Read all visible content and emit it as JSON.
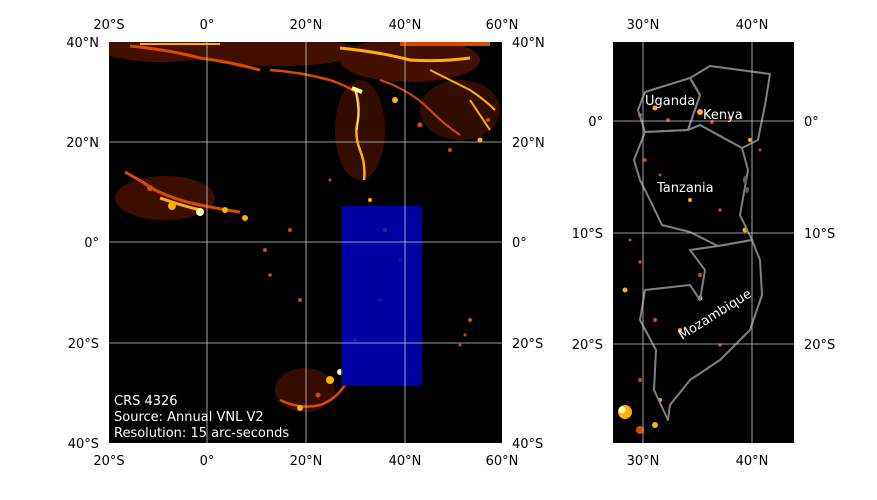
{
  "main_map": {
    "lon_ticks": [
      "20°S",
      "0°",
      "20°N",
      "40°N",
      "60°N"
    ],
    "lat_ticks": [
      "40°N",
      "20°N",
      "0°",
      "20°S",
      "40°S"
    ],
    "notes": [
      "CRS 4326",
      "Source: Annual VNL V2",
      "Resolution: 15 arc-seconds"
    ],
    "highlight_color": "#0000cc",
    "background_color": "#000000"
  },
  "inset_map": {
    "lon_ticks": [
      "30°N",
      "40°N"
    ],
    "lat_ticks": [
      "0°",
      "10°S",
      "20°S"
    ],
    "country_labels": [
      "Uganda",
      "Kenya",
      "Tanzania",
      "Mozambique"
    ],
    "border_color": "#808080"
  },
  "colors": {
    "light_dim": "#6b1a00",
    "light_mid": "#d84a00",
    "light_bright": "#ffb000",
    "light_peak": "#fff7b0"
  }
}
